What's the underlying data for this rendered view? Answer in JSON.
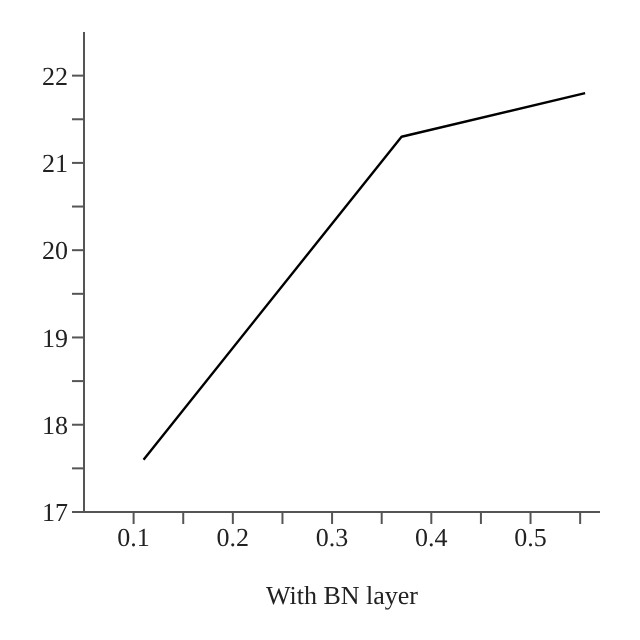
{
  "chart_data": {
    "type": "line",
    "xlabel": "With BN layer",
    "x": [
      0.11,
      0.37,
      0.555
    ],
    "series": [
      {
        "color": "#000000",
        "values": [
          17.6,
          21.3,
          21.8
        ]
      }
    ],
    "xlim": [
      0.05,
      0.57
    ],
    "ylim": [
      17,
      22.5
    ],
    "xticks": [
      0.1,
      {
        "value": 0.15,
        "label": null
      },
      0.2,
      {
        "value": 0.25,
        "label": null
      },
      0.3,
      {
        "value": 0.35,
        "label": null
      },
      0.4,
      {
        "value": 0.45,
        "label": null
      },
      0.5,
      {
        "value": 0.55,
        "label": null
      }
    ],
    "yticks": [
      17,
      {
        "value": 17.5,
        "label": null
      },
      18,
      {
        "value": 18.5,
        "label": null
      },
      19,
      {
        "value": 19.5,
        "label": null
      },
      20,
      {
        "value": 20.5,
        "label": null
      },
      21,
      {
        "value": 21.5,
        "label": null
      },
      22
    ],
    "grid": false,
    "marker": "none",
    "line_style": "solid"
  }
}
